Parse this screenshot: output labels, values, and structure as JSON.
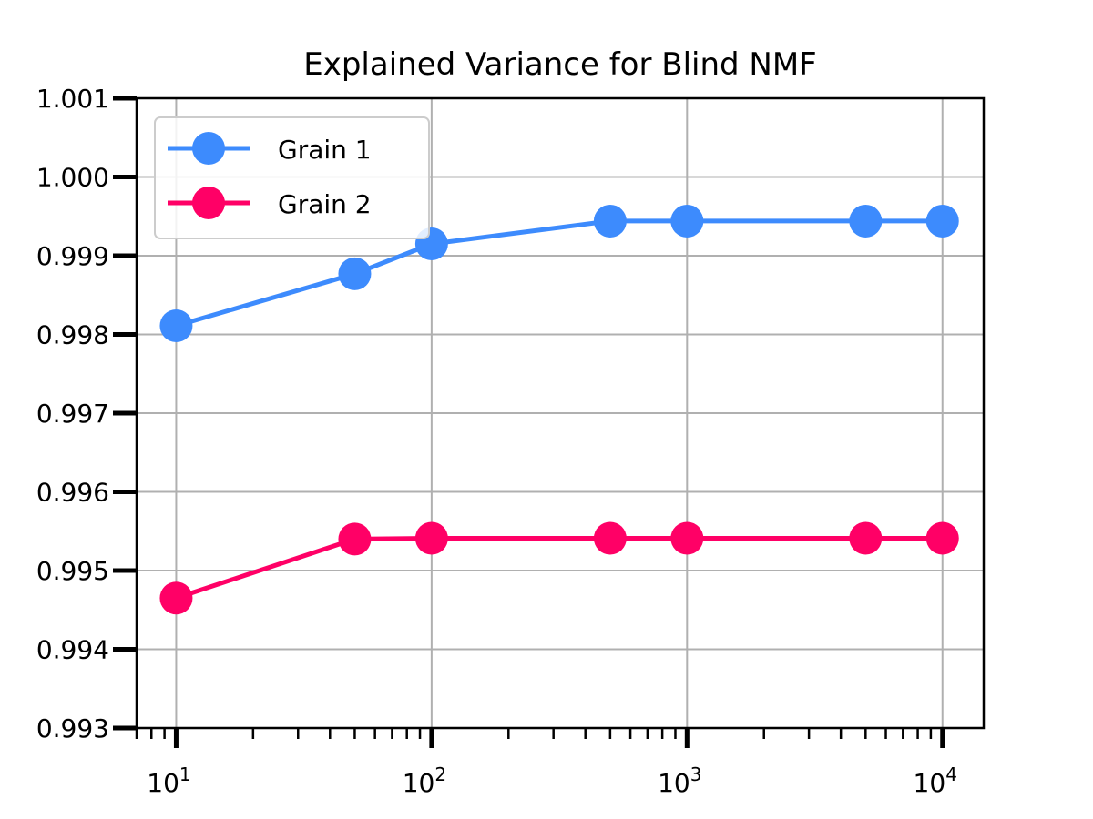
{
  "chart_data": {
    "type": "line",
    "title": "Explained Variance for Blind NMF",
    "xlabel": "",
    "ylabel": "",
    "x_scale": "log",
    "xlim": [
      7,
      14500
    ],
    "ylim": [
      0.993,
      1.001
    ],
    "x_ticks": [
      {
        "value": 10,
        "base": "10",
        "exp": "1"
      },
      {
        "value": 100,
        "base": "10",
        "exp": "2"
      },
      {
        "value": 1000,
        "base": "10",
        "exp": "3"
      },
      {
        "value": 10000,
        "base": "10",
        "exp": "4"
      }
    ],
    "y_ticks": [
      {
        "value": 0.993,
        "label": "0.993"
      },
      {
        "value": 0.994,
        "label": "0.994"
      },
      {
        "value": 0.995,
        "label": "0.995"
      },
      {
        "value": 0.996,
        "label": "0.996"
      },
      {
        "value": 0.997,
        "label": "0.997"
      },
      {
        "value": 0.998,
        "label": "0.998"
      },
      {
        "value": 0.999,
        "label": "0.999"
      },
      {
        "value": 1.0,
        "label": "1.000"
      },
      {
        "value": 1.001,
        "label": "1.001"
      }
    ],
    "x": [
      10,
      50,
      100,
      500,
      1000,
      5000,
      10000
    ],
    "series": [
      {
        "name": "Grain 1",
        "color": "#3d8bfd",
        "values": [
          0.99811,
          0.99877,
          0.99915,
          0.99944,
          0.99944,
          0.99944,
          0.99944
        ]
      },
      {
        "name": "Grain 2",
        "color": "#ff0066",
        "values": [
          0.99465,
          0.9954,
          0.99541,
          0.99541,
          0.99541,
          0.99541,
          0.99541
        ]
      }
    ],
    "grid": true,
    "legend_position": "upper-left"
  }
}
